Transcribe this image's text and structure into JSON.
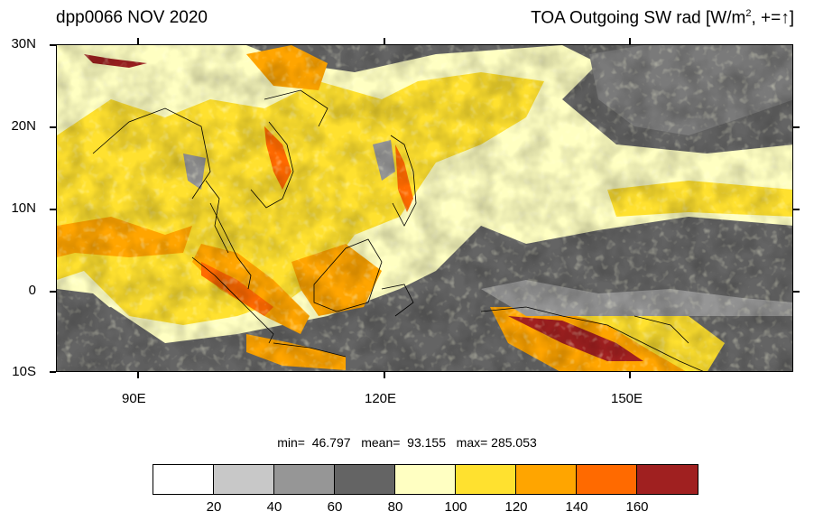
{
  "header": {
    "left_title": "dpp0066 NOV 2020",
    "right_title_main": "TOA Outgoing SW rad [W/m",
    "right_title_sup": "2",
    "right_title_tail": ", +=↑]"
  },
  "map": {
    "lat_labels": [
      "30N",
      "20N",
      "10N",
      "0",
      "10S"
    ],
    "lon_labels": [
      "90E",
      "120E",
      "150E"
    ],
    "background_color": "#6a6a6a"
  },
  "stats": {
    "text": "min=  46.797   mean=  93.155   max= 285.053"
  },
  "colorbar": {
    "colors": [
      "#ffffff",
      "#c8c8c8",
      "#969696",
      "#646464",
      "#ffffc2",
      "#ffe12f",
      "#ffa500",
      "#ff6a00",
      "#a02020"
    ],
    "labels": [
      "20",
      "40",
      "60",
      "80",
      "100",
      "120",
      "140",
      "160"
    ]
  }
}
